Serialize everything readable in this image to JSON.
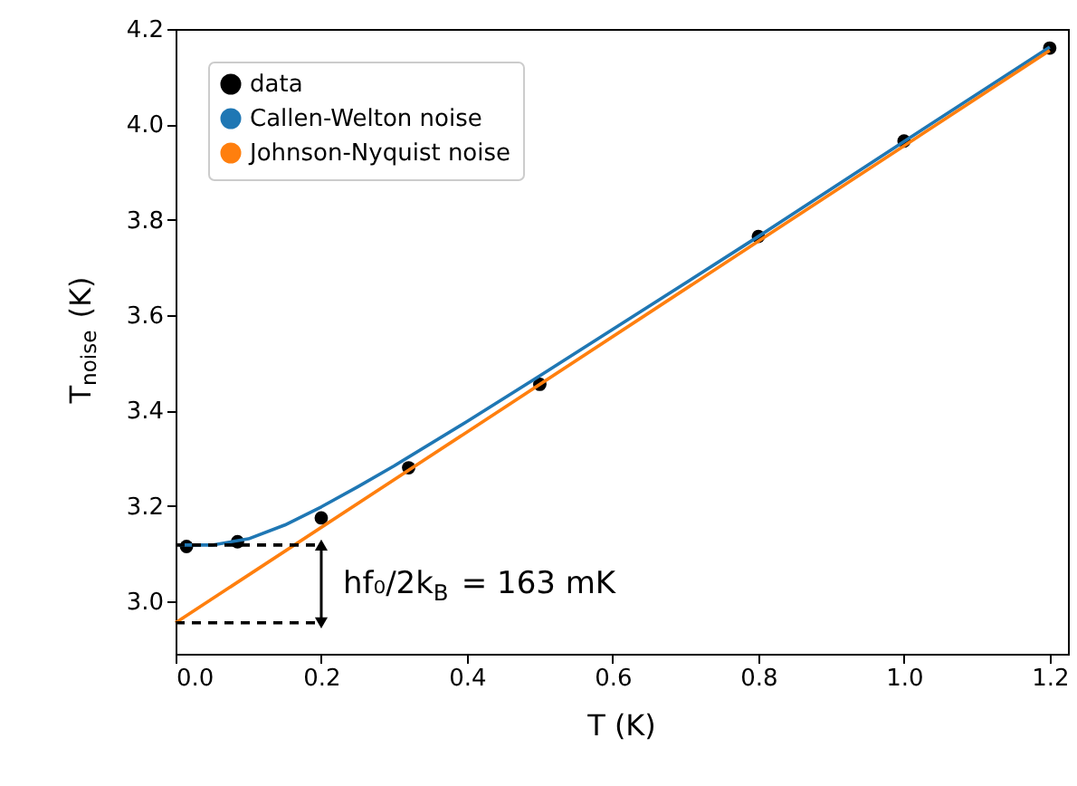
{
  "chart_data": {
    "type": "line",
    "xlabel": "T (K)",
    "ylabel": "T$_{noise}$ (K)",
    "xlim": [
      0,
      1.225
    ],
    "ylim": [
      2.89,
      4.2
    ],
    "xticks": [
      {
        "value": 0,
        "label": "0.0"
      },
      {
        "value": 0.2,
        "label": "0.2"
      },
      {
        "value": 0.4,
        "label": "0.4"
      },
      {
        "value": 0.6,
        "label": "0.6"
      },
      {
        "value": 0.8,
        "label": "0.8"
      },
      {
        "value": 1.0,
        "label": "1.0"
      },
      {
        "value": 1.2,
        "label": "1.2"
      }
    ],
    "yticks": [
      {
        "value": 3.0,
        "label": "3.0"
      },
      {
        "value": 3.2,
        "label": "3.2"
      },
      {
        "value": 3.4,
        "label": "3.4"
      },
      {
        "value": 3.6,
        "label": "3.6"
      },
      {
        "value": 3.8,
        "label": "3.8"
      },
      {
        "value": 4.0,
        "label": "4.0"
      },
      {
        "value": 4.2,
        "label": "4.2"
      }
    ],
    "legend": "top left",
    "grid": false,
    "series": [
      {
        "name": "data",
        "type": "scatter",
        "marker": "circle",
        "color": "#000000",
        "x": [
          0.015,
          0.085,
          0.2,
          0.32,
          0.5,
          0.8,
          1.0,
          1.2
        ],
        "values": [
          3.115,
          3.125,
          3.175,
          3.28,
          3.455,
          3.765,
          3.965,
          4.16
        ]
      },
      {
        "name": "Callen-Welton noise",
        "type": "line",
        "line_style": "solid",
        "color": "#1f77b4",
        "x": [
          0.005,
          0.05,
          0.1,
          0.15,
          0.2,
          0.25,
          0.3,
          0.4,
          0.5,
          0.6,
          0.8,
          1.0,
          1.2
        ],
        "values": [
          3.118,
          3.118,
          3.131,
          3.16,
          3.198,
          3.24,
          3.284,
          3.377,
          3.473,
          3.57,
          3.765,
          3.964,
          4.162
        ]
      },
      {
        "name": "Johnson-Nyquist noise",
        "type": "line",
        "line_style": "solid",
        "color": "#ff7f0e",
        "x": [
          0.0,
          1.2
        ],
        "values": [
          2.955,
          4.155
        ]
      },
      {
        "line_style": "dashed",
        "color": "#000000",
        "x": [
          0.0,
          0.2
        ],
        "values": [
          3.118,
          3.118
        ]
      },
      {
        "line_style": "dashed",
        "color": "#000000",
        "x": [
          0.0,
          0.2
        ],
        "values": [
          2.955,
          2.955
        ]
      }
    ],
    "annotations": [
      "hf₀/2k$_{B}$ = 163 mK"
    ]
  }
}
